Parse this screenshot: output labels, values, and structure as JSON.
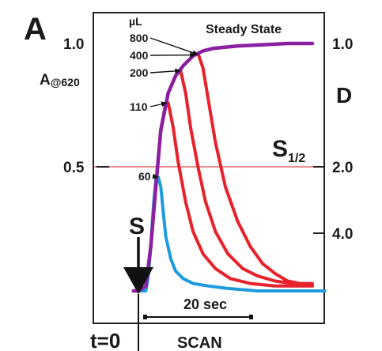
{
  "chart_data": {
    "type": "line",
    "panel_label": "A",
    "left_axis": {
      "label_main": "A",
      "label_sub": "@620",
      "ticks": [
        "1.0",
        "0.5"
      ],
      "tick_values": [
        1.0,
        0.5
      ],
      "ylim": [
        0,
        1.1
      ]
    },
    "right_axis": {
      "label": "D",
      "ticks": [
        "1.0",
        "2.0",
        "4.0"
      ]
    },
    "volume_unit": "µL",
    "steady_state_label": "Steady State",
    "half_saturation_label": {
      "main": "S",
      "sub": "1/2",
      "value": 0.5
    },
    "start_marker": "S",
    "time_zero_label": "t=0",
    "time_bar_label": "20 sec",
    "scan_label": "SCAN",
    "xlim": [
      -2,
      75
    ],
    "series": [
      {
        "name": "800",
        "color": "#e8212b",
        "points": [
          [
            0,
            0
          ],
          [
            3,
            0.02
          ],
          [
            5,
            0.18
          ],
          [
            7,
            0.42
          ],
          [
            9,
            0.65
          ],
          [
            12,
            0.8
          ],
          [
            15,
            0.87
          ],
          [
            18,
            0.91
          ],
          [
            22,
            0.95
          ],
          [
            26,
            0.97
          ],
          [
            30,
            0.98
          ],
          [
            40,
            0.99
          ],
          [
            50,
            0.995
          ],
          [
            60,
            1.0
          ],
          [
            70,
            1.0
          ]
        ]
      },
      {
        "name": "400",
        "color": "#e8212b",
        "points": [
          [
            0,
            0
          ],
          [
            3,
            0.02
          ],
          [
            5,
            0.18
          ],
          [
            7,
            0.42
          ],
          [
            9,
            0.65
          ],
          [
            12,
            0.8
          ],
          [
            15,
            0.87
          ],
          [
            18,
            0.91
          ],
          [
            22,
            0.95
          ],
          [
            24,
            0.96
          ],
          [
            26,
            0.9
          ],
          [
            28,
            0.78
          ],
          [
            31,
            0.6
          ],
          [
            35,
            0.42
          ],
          [
            40,
            0.28
          ],
          [
            45,
            0.18
          ],
          [
            50,
            0.11
          ],
          [
            55,
            0.07
          ],
          [
            60,
            0.04
          ],
          [
            65,
            0.03
          ],
          [
            70,
            0.03
          ]
        ]
      },
      {
        "name": "200",
        "color": "#e8212b",
        "points": [
          [
            0,
            0
          ],
          [
            3,
            0.02
          ],
          [
            5,
            0.18
          ],
          [
            7,
            0.42
          ],
          [
            9,
            0.65
          ],
          [
            12,
            0.8
          ],
          [
            15,
            0.87
          ],
          [
            17,
            0.89
          ],
          [
            19,
            0.8
          ],
          [
            21,
            0.66
          ],
          [
            24,
            0.5
          ],
          [
            27,
            0.36
          ],
          [
            31,
            0.24
          ],
          [
            36,
            0.15
          ],
          [
            42,
            0.09
          ],
          [
            48,
            0.06
          ],
          [
            55,
            0.04
          ],
          [
            62,
            0.03
          ],
          [
            70,
            0.02
          ]
        ]
      },
      {
        "name": "110",
        "color": "#e8212b",
        "points": [
          [
            0,
            0
          ],
          [
            3,
            0.02
          ],
          [
            5,
            0.18
          ],
          [
            7,
            0.42
          ],
          [
            9,
            0.65
          ],
          [
            11,
            0.76
          ],
          [
            12,
            0.76
          ],
          [
            14,
            0.66
          ],
          [
            16,
            0.52
          ],
          [
            19,
            0.36
          ],
          [
            22,
            0.24
          ],
          [
            26,
            0.15
          ],
          [
            31,
            0.09
          ],
          [
            37,
            0.05
          ],
          [
            45,
            0.03
          ],
          [
            55,
            0.02
          ],
          [
            70,
            0.02
          ]
        ]
      },
      {
        "name": "60",
        "color": "#1e9be0",
        "points": [
          [
            -2,
            0
          ],
          [
            3,
            0
          ],
          [
            4,
            0.06
          ],
          [
            5,
            0.18
          ],
          [
            6,
            0.34
          ],
          [
            7,
            0.45
          ],
          [
            8,
            0.46
          ],
          [
            9,
            0.42
          ],
          [
            10,
            0.32
          ],
          [
            11,
            0.22
          ],
          [
            13,
            0.13
          ],
          [
            15,
            0.08
          ],
          [
            18,
            0.05
          ],
          [
            22,
            0.03
          ],
          [
            28,
            0.02
          ],
          [
            36,
            0.01
          ],
          [
            48,
            0.0
          ],
          [
            75,
            0.0
          ]
        ]
      },
      {
        "name": "",
        "color": "#8b1fa2",
        "points": [
          [
            -2,
            0
          ],
          [
            0,
            0
          ],
          [
            3,
            0.02
          ],
          [
            5,
            0.18
          ],
          [
            7,
            0.42
          ],
          [
            9,
            0.65
          ],
          [
            12,
            0.8
          ],
          [
            15,
            0.87
          ],
          [
            18,
            0.91
          ],
          [
            22,
            0.95
          ],
          [
            26,
            0.97
          ],
          [
            30,
            0.98
          ],
          [
            40,
            0.99
          ],
          [
            50,
            0.995
          ],
          [
            60,
            1.0
          ],
          [
            70,
            1.0
          ]
        ]
      }
    ]
  }
}
